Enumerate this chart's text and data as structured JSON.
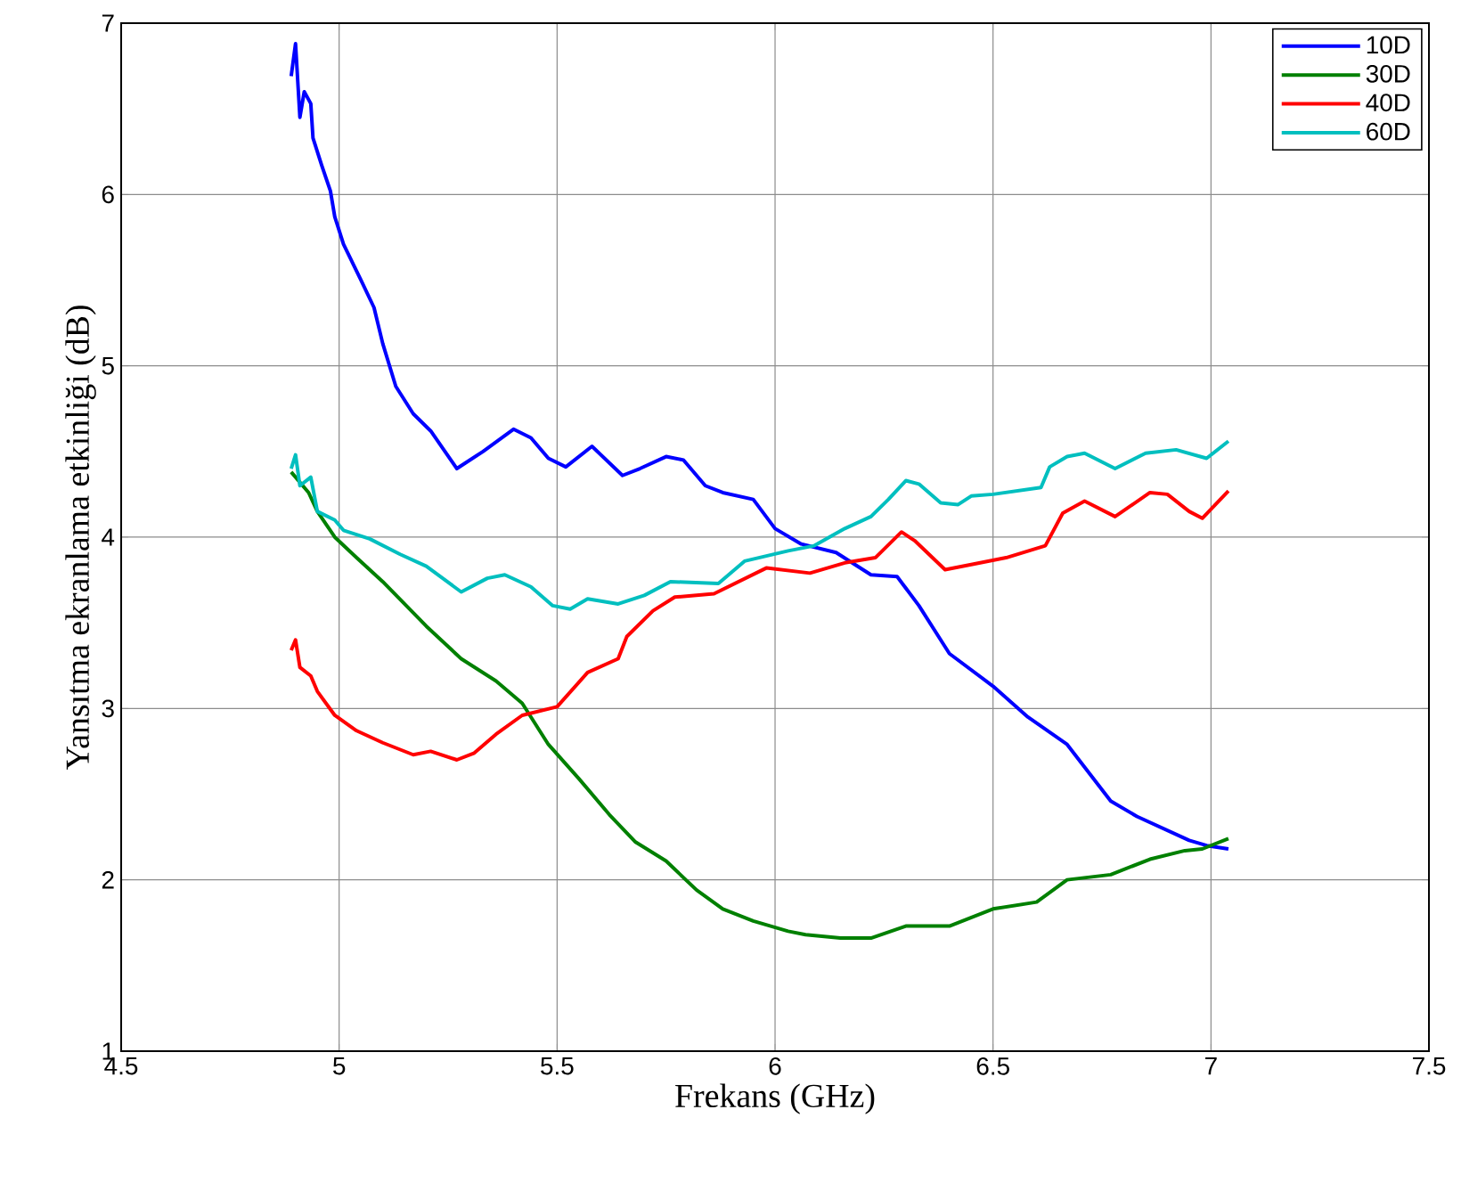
{
  "chart_data": {
    "type": "line",
    "xlabel": "Frekans (GHz)",
    "ylabel": "Yansıtma ekranlama etkinliği (dB)",
    "xlim": [
      4.5,
      7.5
    ],
    "ylim": [
      1,
      7
    ],
    "xticks": [
      4.5,
      5,
      5.5,
      6,
      6.5,
      7,
      7.5
    ],
    "yticks": [
      1,
      2,
      3,
      4,
      5,
      6,
      7
    ],
    "grid": true,
    "legend": "top right",
    "series": [
      {
        "name": "10D",
        "color": "#0000ff",
        "x": [
          4.89,
          4.9,
          4.91,
          4.92,
          4.935,
          4.94,
          4.96,
          4.98,
          4.99,
          5.01,
          5.05,
          5.08,
          5.1,
          5.13,
          5.17,
          5.21,
          5.27,
          5.33,
          5.4,
          5.44,
          5.48,
          5.52,
          5.58,
          5.65,
          5.69,
          5.75,
          5.79,
          5.84,
          5.88,
          5.95,
          6.0,
          6.06,
          6.14,
          6.22,
          6.28,
          6.33,
          6.4,
          6.5,
          6.58,
          6.67,
          6.77,
          6.83,
          6.95,
          6.99,
          7.04
        ],
        "values": [
          6.69,
          6.88,
          6.45,
          6.6,
          6.53,
          6.33,
          6.17,
          6.02,
          5.87,
          5.71,
          5.5,
          5.34,
          5.13,
          4.88,
          4.72,
          4.62,
          4.4,
          4.5,
          4.63,
          4.58,
          4.46,
          4.41,
          4.53,
          4.36,
          4.4,
          4.47,
          4.45,
          4.3,
          4.26,
          4.22,
          4.05,
          3.96,
          3.91,
          3.78,
          3.77,
          3.6,
          3.32,
          3.13,
          2.95,
          2.79,
          2.46,
          2.37,
          2.23,
          2.2,
          2.18
        ]
      },
      {
        "name": "30D",
        "color": "#008000",
        "x": [
          4.89,
          4.93,
          4.95,
          4.99,
          5.04,
          5.1,
          5.2,
          5.28,
          5.36,
          5.42,
          5.48,
          5.55,
          5.62,
          5.68,
          5.75,
          5.82,
          5.88,
          5.95,
          6.03,
          6.07,
          6.15,
          6.22,
          6.3,
          6.4,
          6.5,
          6.6,
          6.67,
          6.77,
          6.86,
          6.94,
          6.98,
          7.04
        ],
        "values": [
          4.38,
          4.26,
          4.15,
          4.0,
          3.88,
          3.74,
          3.48,
          3.29,
          3.16,
          3.03,
          2.79,
          2.59,
          2.38,
          2.22,
          2.11,
          1.94,
          1.83,
          1.76,
          1.7,
          1.68,
          1.66,
          1.66,
          1.73,
          1.73,
          1.83,
          1.87,
          2.0,
          2.03,
          2.12,
          2.17,
          2.18,
          2.24
        ]
      },
      {
        "name": "40D",
        "color": "#ff0000",
        "x": [
          4.89,
          4.9,
          4.91,
          4.935,
          4.95,
          4.99,
          5.04,
          5.1,
          5.17,
          5.21,
          5.27,
          5.31,
          5.36,
          5.42,
          5.5,
          5.57,
          5.64,
          5.66,
          5.72,
          5.77,
          5.86,
          5.98,
          6.08,
          6.16,
          6.23,
          6.29,
          6.32,
          6.39,
          6.45,
          6.53,
          6.62,
          6.66,
          6.71,
          6.78,
          6.86,
          6.9,
          6.95,
          6.98,
          7.04
        ],
        "values": [
          3.34,
          3.4,
          3.24,
          3.19,
          3.1,
          2.96,
          2.87,
          2.8,
          2.73,
          2.75,
          2.7,
          2.74,
          2.85,
          2.96,
          3.01,
          3.21,
          3.29,
          3.42,
          3.57,
          3.65,
          3.67,
          3.82,
          3.79,
          3.85,
          3.88,
          4.03,
          3.98,
          3.81,
          3.84,
          3.88,
          3.95,
          4.14,
          4.21,
          4.12,
          4.26,
          4.25,
          4.15,
          4.11,
          4.27
        ]
      },
      {
        "name": "60D",
        "color": "#00bfbf",
        "x": [
          4.89,
          4.9,
          4.91,
          4.935,
          4.95,
          4.99,
          5.01,
          5.07,
          5.14,
          5.2,
          5.28,
          5.34,
          5.38,
          5.44,
          5.49,
          5.53,
          5.57,
          5.64,
          5.7,
          5.76,
          5.87,
          5.93,
          6.03,
          6.09,
          6.16,
          6.22,
          6.26,
          6.3,
          6.33,
          6.38,
          6.42,
          6.45,
          6.5,
          6.61,
          6.63,
          6.67,
          6.71,
          6.78,
          6.85,
          6.92,
          6.99,
          7.04
        ],
        "values": [
          4.4,
          4.48,
          4.3,
          4.35,
          4.15,
          4.1,
          4.04,
          3.99,
          3.9,
          3.83,
          3.68,
          3.76,
          3.78,
          3.71,
          3.6,
          3.58,
          3.64,
          3.61,
          3.66,
          3.74,
          3.73,
          3.86,
          3.92,
          3.95,
          4.05,
          4.12,
          4.22,
          4.33,
          4.31,
          4.2,
          4.19,
          4.24,
          4.25,
          4.29,
          4.41,
          4.47,
          4.49,
          4.4,
          4.49,
          4.51,
          4.46,
          4.56
        ]
      }
    ]
  }
}
